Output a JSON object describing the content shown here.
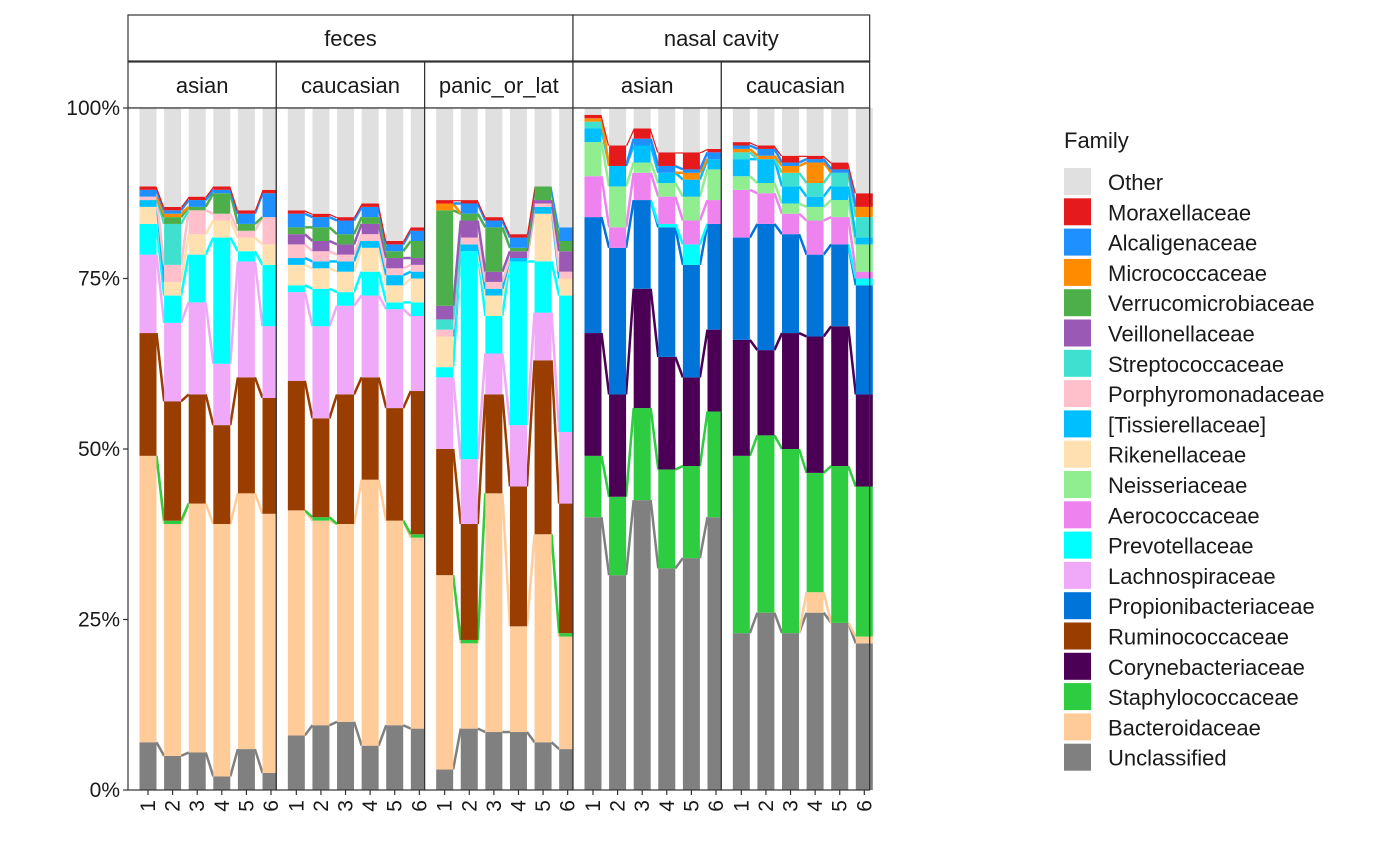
{
  "chart_data": {
    "type": "bar",
    "stacked": true,
    "y_axis": {
      "ylim": [
        0,
        1
      ],
      "ticks": [
        0,
        0.25,
        0.5,
        0.75,
        1
      ],
      "tick_labels": [
        "0%",
        "25%",
        "50%",
        "75%",
        "100%"
      ]
    },
    "x_tick_labels": [
      "1",
      "2",
      "3",
      "4",
      "5",
      "6"
    ],
    "legend": {
      "title": "Family",
      "placement": "right"
    },
    "families": [
      {
        "name": "Unclassified",
        "color": "#808080"
      },
      {
        "name": "Bacteroidaceae",
        "color": "#FFCC99"
      },
      {
        "name": "Staphylococcaceae",
        "color": "#2ECC40"
      },
      {
        "name": "Corynebacteriaceae",
        "color": "#4B0055"
      },
      {
        "name": "Ruminococcaceae",
        "color": "#993D00"
      },
      {
        "name": "Propionibacteriaceae",
        "color": "#0074D9"
      },
      {
        "name": "Lachnospiraceae",
        "color": "#F0A8F8"
      },
      {
        "name": "Prevotellaceae",
        "color": "#00FFFF"
      },
      {
        "name": "Aerococcaceae",
        "color": "#EE82EE"
      },
      {
        "name": "Neisseriaceae",
        "color": "#90EE90"
      },
      {
        "name": "Rikenellaceae",
        "color": "#FFE0B0"
      },
      {
        "name": "[Tissierellaceae]",
        "color": "#00BFFF"
      },
      {
        "name": "Porphyromonadaceae",
        "color": "#FFC0CB"
      },
      {
        "name": "Streptococcaceae",
        "color": "#40E0D0"
      },
      {
        "name": "Veillonellaceae",
        "color": "#9B59B6"
      },
      {
        "name": "Verrucomicrobiaceae",
        "color": "#4DAF4A"
      },
      {
        "name": "Micrococcaceae",
        "color": "#FF8C00"
      },
      {
        "name": "Alcaligenaceae",
        "color": "#1E90FF"
      },
      {
        "name": "Moraxellaceae",
        "color": "#E41A1C"
      },
      {
        "name": "Other",
        "color": "#E0E0E0"
      }
    ],
    "facets": [
      {
        "site": "feces",
        "groups": [
          {
            "ethnicity": "asian",
            "bars": [
              [
                0.07,
                0.42,
                0.0,
                0.0,
                0.18,
                0.0,
                0.115,
                0.045,
                0.0,
                0.0,
                0.025,
                0.01,
                0.005,
                0.0,
                0.0,
                0.0,
                0.0,
                0.01,
                0.005
              ],
              [
                0.05,
                0.34,
                0.005,
                0.0,
                0.175,
                0.0,
                0.115,
                0.04,
                0.0,
                0.0,
                0.02,
                0.0,
                0.025,
                0.06,
                0.0,
                0.01,
                0.005,
                0.005,
                0.005
              ],
              [
                0.055,
                0.365,
                0.0,
                0.0,
                0.16,
                0.0,
                0.135,
                0.07,
                0.0,
                0.0,
                0.03,
                0.0,
                0.035,
                0.0,
                0.0,
                0.005,
                0.0,
                0.01,
                0.005
              ],
              [
                0.02,
                0.37,
                0.0,
                0.0,
                0.145,
                0.0,
                0.09,
                0.185,
                0.0,
                0.0,
                0.025,
                0.0,
                0.01,
                0.0,
                0.0,
                0.03,
                0.0,
                0.005,
                0.005
              ],
              [
                0.06,
                0.375,
                0.0,
                0.0,
                0.17,
                0.0,
                0.17,
                0.015,
                0.0,
                0.0,
                0.02,
                0.0,
                0.01,
                0.0,
                0.0,
                0.01,
                0.0,
                0.015,
                0.005
              ],
              [
                0.025,
                0.38,
                0.0,
                0.0,
                0.17,
                0.0,
                0.105,
                0.09,
                0.0,
                0.0,
                0.03,
                0.0,
                0.04,
                0.0,
                0.0,
                0.0,
                0.0,
                0.035,
                0.005
              ]
            ]
          },
          {
            "ethnicity": "caucasian",
            "bars": [
              [
                0.08,
                0.33,
                0.0,
                0.0,
                0.19,
                0.0,
                0.13,
                0.01,
                0.0,
                0.0,
                0.03,
                0.01,
                0.02,
                0.0,
                0.015,
                0.01,
                0.0,
                0.02,
                0.005
              ],
              [
                0.095,
                0.3,
                0.005,
                0.0,
                0.145,
                0.0,
                0.135,
                0.055,
                0.0,
                0.0,
                0.03,
                0.01,
                0.015,
                0.0,
                0.015,
                0.02,
                0.0,
                0.015,
                0.005
              ],
              [
                0.1,
                0.29,
                0.0,
                0.0,
                0.19,
                0.0,
                0.13,
                0.02,
                0.0,
                0.0,
                0.03,
                0.015,
                0.01,
                0.0,
                0.015,
                0.015,
                0.0,
                0.02,
                0.005
              ],
              [
                0.065,
                0.39,
                0.0,
                0.0,
                0.15,
                0.0,
                0.12,
                0.035,
                0.0,
                0.0,
                0.035,
                0.01,
                0.01,
                0.0,
                0.015,
                0.01,
                0.0,
                0.015,
                0.005
              ],
              [
                0.095,
                0.3,
                0.0,
                0.0,
                0.165,
                0.0,
                0.145,
                0.01,
                0.0,
                0.0,
                0.025,
                0.015,
                0.01,
                0.0,
                0.015,
                0.01,
                0.0,
                0.01,
                0.005
              ],
              [
                0.09,
                0.28,
                0.005,
                0.0,
                0.21,
                0.0,
                0.11,
                0.02,
                0.0,
                0.0,
                0.035,
                0.01,
                0.01,
                0.0,
                0.01,
                0.025,
                0.0,
                0.015,
                0.005
              ]
            ]
          },
          {
            "ethnicity": "panic_or_lat",
            "bars": [
              [
                0.03,
                0.285,
                0.0,
                0.0,
                0.185,
                0.0,
                0.105,
                0.015,
                0.0,
                0.0,
                0.045,
                0.0,
                0.01,
                0.015,
                0.02,
                0.14,
                0.01,
                0.0,
                0.005
              ],
              [
                0.09,
                0.125,
                0.005,
                0.0,
                0.17,
                0.0,
                0.095,
                0.305,
                0.0,
                0.0,
                0.0,
                0.01,
                0.01,
                0.0,
                0.025,
                0.01,
                0.0,
                0.015,
                0.005
              ],
              [
                0.085,
                0.35,
                0.0,
                0.0,
                0.145,
                0.0,
                0.06,
                0.055,
                0.0,
                0.0,
                0.03,
                0.01,
                0.01,
                0.0,
                0.015,
                0.065,
                0.0,
                0.01,
                0.005
              ],
              [
                0.085,
                0.155,
                0.0,
                0.0,
                0.205,
                0.0,
                0.09,
                0.24,
                0.0,
                0.0,
                0.0,
                0.005,
                0.0,
                0.0,
                0.01,
                0.005,
                0.0,
                0.015,
                0.005
              ],
              [
                0.07,
                0.305,
                0.0,
                0.0,
                0.255,
                0.0,
                0.07,
                0.075,
                0.0,
                0.0,
                0.07,
                0.01,
                0.005,
                0.0,
                0.005,
                0.02,
                0.0,
                0.0,
                0.0
              ],
              [
                0.06,
                0.165,
                0.005,
                0.0,
                0.19,
                0.0,
                0.105,
                0.2,
                0.0,
                0.0,
                0.025,
                0.0,
                0.01,
                0.0,
                0.03,
                0.015,
                0.0,
                0.02,
                0.0
              ]
            ]
          }
        ]
      },
      {
        "site": "nasal cavity",
        "groups": [
          {
            "ethnicity": "asian",
            "bars": [
              [
                0.4,
                0.0,
                0.09,
                0.18,
                0.0,
                0.17,
                0.0,
                0.0,
                0.06,
                0.05,
                0.0,
                0.02,
                0.0,
                0.01,
                0.0,
                0.0,
                0.005,
                0.0,
                0.005
              ],
              [
                0.315,
                0.0,
                0.115,
                0.15,
                0.0,
                0.215,
                0.0,
                0.0,
                0.03,
                0.06,
                0.0,
                0.03,
                0.0,
                0.0,
                0.0,
                0.0,
                0.0,
                0.0,
                0.03
              ],
              [
                0.425,
                0.0,
                0.135,
                0.175,
                0.0,
                0.13,
                0.0,
                0.0,
                0.04,
                0.015,
                0.0,
                0.025,
                0.0,
                0.0,
                0.0,
                0.0,
                0.0,
                0.01,
                0.015
              ],
              [
                0.325,
                0.0,
                0.145,
                0.165,
                0.0,
                0.19,
                0.0,
                0.005,
                0.04,
                0.02,
                0.0,
                0.015,
                0.0,
                0.0,
                0.0,
                0.0,
                0.0,
                0.01,
                0.02
              ],
              [
                0.34,
                0.0,
                0.135,
                0.13,
                0.0,
                0.165,
                0.0,
                0.03,
                0.035,
                0.035,
                0.0,
                0.025,
                0.0,
                0.0,
                0.0,
                0.0,
                0.01,
                0.005,
                0.025
              ],
              [
                0.4,
                0.0,
                0.155,
                0.12,
                0.0,
                0.155,
                0.0,
                0.0,
                0.035,
                0.045,
                0.0,
                0.015,
                0.0,
                0.0,
                0.0,
                0.0,
                0.0,
                0.01,
                0.005
              ]
            ]
          },
          {
            "ethnicity": "caucasian",
            "bars": [
              [
                0.23,
                0.0,
                0.26,
                0.17,
                0.0,
                0.15,
                0.0,
                0.0,
                0.07,
                0.02,
                0.0,
                0.025,
                0.0,
                0.01,
                0.0,
                0.0,
                0.005,
                0.005,
                0.005
              ],
              [
                0.26,
                0.0,
                0.26,
                0.125,
                0.0,
                0.185,
                0.0,
                0.0,
                0.045,
                0.015,
                0.0,
                0.035,
                0.0,
                0.0,
                0.0,
                0.0,
                0.005,
                0.01,
                0.005
              ],
              [
                0.23,
                0.0,
                0.27,
                0.17,
                0.0,
                0.145,
                0.0,
                0.0,
                0.03,
                0.015,
                0.0,
                0.025,
                0.0,
                0.02,
                0.0,
                0.0,
                0.01,
                0.005,
                0.01
              ],
              [
                0.26,
                0.03,
                0.175,
                0.2,
                0.0,
                0.12,
                0.0,
                0.0,
                0.05,
                0.02,
                0.0,
                0.015,
                0.0,
                0.02,
                0.0,
                0.0,
                0.03,
                0.005,
                0.005
              ],
              [
                0.245,
                0.0,
                0.23,
                0.205,
                0.0,
                0.12,
                0.0,
                0.0,
                0.04,
                0.025,
                0.0,
                0.02,
                0.0,
                0.02,
                0.0,
                0.0,
                0.0,
                0.005,
                0.01
              ],
              [
                0.215,
                0.01,
                0.22,
                0.135,
                0.0,
                0.16,
                0.0,
                0.01,
                0.01,
                0.04,
                0.0,
                0.01,
                0.0,
                0.03,
                0.0,
                0.0,
                0.015,
                0.0,
                0.02
              ]
            ]
          }
        ]
      }
    ]
  }
}
